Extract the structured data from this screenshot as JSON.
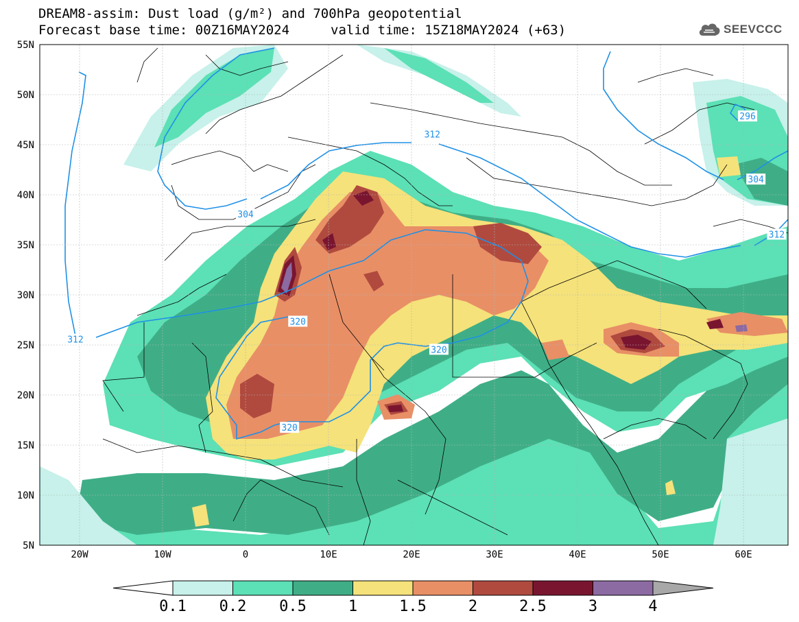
{
  "title": {
    "line1": "DREAM8-assim: Dust load (g/m²) and 700hPa geopotential",
    "line2": "Forecast base time: 00Z16MAY2024",
    "valid": "valid time: 15Z18MAY2024 (+63)"
  },
  "logo": {
    "icon": "cloud-icon",
    "text": "SEEVCCC"
  },
  "axes": {
    "lat_labels": [
      "55N",
      "50N",
      "45N",
      "40N",
      "35N",
      "30N",
      "25N",
      "20N",
      "15N",
      "10N",
      "5N"
    ],
    "lon_labels": [
      "20W",
      "10W",
      "0",
      "10E",
      "20E",
      "30E",
      "40E",
      "50E",
      "60E"
    ]
  },
  "contour_labels": [
    {
      "text": "312",
      "lon": -20.5,
      "lat": 25.5
    },
    {
      "text": "304",
      "lon": 0.0,
      "lat": 38.0
    },
    {
      "text": "312",
      "lon": 22.5,
      "lat": 46.0
    },
    {
      "text": "296",
      "lon": 60.5,
      "lat": 47.8
    },
    {
      "text": "304",
      "lon": 61.5,
      "lat": 41.5
    },
    {
      "text": "312",
      "lon": 64.0,
      "lat": 36.0
    },
    {
      "text": "320",
      "lon": 6.3,
      "lat": 27.3
    },
    {
      "text": "320",
      "lon": 23.3,
      "lat": 24.5
    },
    {
      "text": "320",
      "lon": 5.3,
      "lat": 16.7
    }
  ],
  "colorbar": {
    "levels": [
      "0.1",
      "0.2",
      "0.5",
      "1",
      "1.5",
      "2",
      "2.5",
      "3",
      "4"
    ],
    "colors": [
      "#c7f1ea",
      "#5ce0b5",
      "#3fae87",
      "#f5e27a",
      "#e88f66",
      "#b04a3f",
      "#7a1530",
      "#8c6aa2"
    ],
    "under_color": "#ffffff",
    "over_color": "#a8a8a8"
  },
  "dust_colors": {
    "very_light": "#c7f1ea",
    "light": "#5ce0b5",
    "medium": "#3fae87",
    "yellow": "#f5e27a",
    "orange": "#e88f66",
    "brick": "#b04a3f",
    "maroon": "#7a1530",
    "purple": "#8c6aa2"
  },
  "contour_color": "#1e90e6"
}
